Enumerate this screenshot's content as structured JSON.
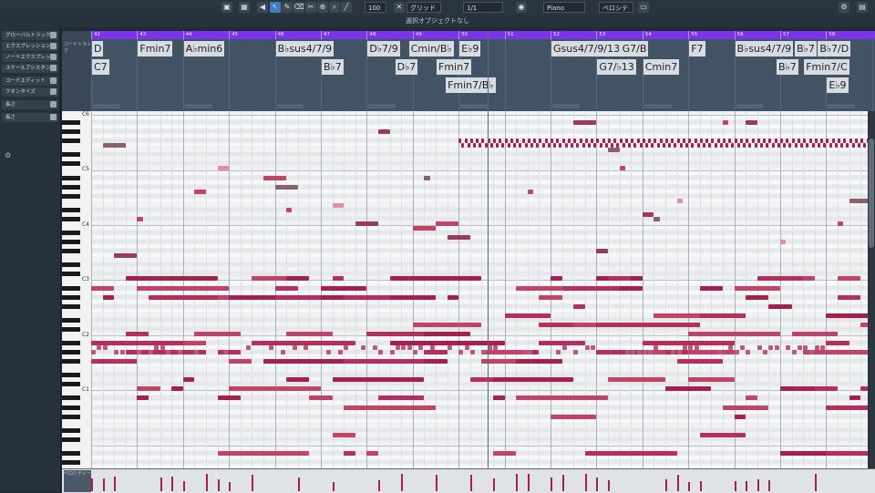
{
  "toolbar": {
    "quantize_value": "100",
    "grid_label": "グリッド",
    "length_value": "1/1",
    "instrument": "Piano",
    "voicing_label": "ベロシティー"
  },
  "info_bar": {
    "text": "選択オブジェクトなし"
  },
  "inspector": {
    "items": [
      "グローバルトラック",
      "エクスプレッションマップ",
      "ノートエクスプレッション",
      "スケールアシスタント",
      "コードエディット",
      "クオンタイズ",
      "長さ",
      "長さ"
    ]
  },
  "chord_track": {
    "label": "コードトラック",
    "bars": [
      "42",
      "43",
      "44",
      "45",
      "46",
      "47",
      "48",
      "49",
      "50",
      "51",
      "52",
      "53",
      "54",
      "55",
      "56",
      "57",
      "58"
    ],
    "chords": [
      {
        "text": "D",
        "bar": 42.0,
        "row": 0
      },
      {
        "text": "C7",
        "bar": 42.0,
        "row": 1
      },
      {
        "text": "Fmin7",
        "bar": 43.0,
        "row": 0
      },
      {
        "text": "A♭min6",
        "bar": 44.0,
        "row": 0
      },
      {
        "text": "B♭sus4/7/9",
        "bar": 46.0,
        "row": 0
      },
      {
        "text": "B♭7",
        "bar": 47.0,
        "row": 1
      },
      {
        "text": "D♭7/9",
        "bar": 48.0,
        "row": 0
      },
      {
        "text": "D♭7",
        "bar": 48.6,
        "row": 1
      },
      {
        "text": "Cmin/B♭",
        "bar": 48.9,
        "row": 0
      },
      {
        "text": "Fmin7",
        "bar": 49.5,
        "row": 1
      },
      {
        "text": "Fmin7/B♭",
        "bar": 49.7,
        "row": 2
      },
      {
        "text": "E♭9",
        "bar": 50.0,
        "row": 0
      },
      {
        "text": "Gsus4/7/9/13",
        "bar": 52.0,
        "row": 0
      },
      {
        "text": "G7/♭13",
        "bar": 53.0,
        "row": 1
      },
      {
        "text": "G7/B",
        "bar": 53.5,
        "row": 0
      },
      {
        "text": "Cmin7",
        "bar": 54.0,
        "row": 1
      },
      {
        "text": "F7",
        "bar": 55.0,
        "row": 0
      },
      {
        "text": "B♭sus4/7/9",
        "bar": 56.0,
        "row": 0
      },
      {
        "text": "B♭7",
        "bar": 56.9,
        "row": 1
      },
      {
        "text": "B♭7",
        "bar": 57.3,
        "row": 0
      },
      {
        "text": "B♭7/D",
        "bar": 57.8,
        "row": 0
      },
      {
        "text": "Fmin7/C",
        "bar": 57.5,
        "row": 1
      },
      {
        "text": "E♭9",
        "bar": 58.0,
        "row": 2
      }
    ]
  },
  "keyboard": {
    "octaves": [
      "C6",
      "C5",
      "C4",
      "C3",
      "C2",
      "C1"
    ]
  },
  "velocity": {
    "label": "ベロシティー"
  },
  "colors": {
    "ruler": "#7a35e8",
    "note_dark": "#a3204f",
    "note_mid": "#c04468",
    "note_light": "#e08ea6",
    "note_gray": "#8a5f70"
  }
}
